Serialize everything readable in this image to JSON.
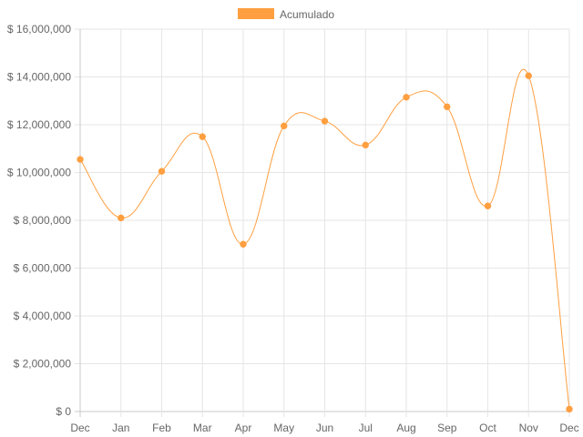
{
  "chart_data": {
    "type": "line",
    "title": "",
    "xlabel": "",
    "ylabel": "",
    "categories": [
      "Dec",
      "Jan",
      "Feb",
      "Mar",
      "Apr",
      "May",
      "Jun",
      "Jul",
      "Aug",
      "Sep",
      "Oct",
      "Nov",
      "Dec"
    ],
    "series": [
      {
        "name": "Acumulado",
        "color": "#ff9f40",
        "values": [
          10550000,
          8100000,
          10050000,
          11500000,
          7000000,
          11950000,
          12150000,
          11150000,
          13150000,
          12750000,
          8600000,
          14050000,
          100000
        ]
      }
    ],
    "ylim": [
      0,
      16000000
    ],
    "y_ticks": [
      0,
      2000000,
      4000000,
      6000000,
      8000000,
      10000000,
      12000000,
      14000000,
      16000000
    ],
    "y_tick_labels": [
      "$ 0",
      "$ 2,000,000",
      "$ 4,000,000",
      "$ 6,000,000",
      "$ 8,000,000",
      "$ 10,000,000",
      "$ 12,000,000",
      "$ 14,000,000",
      "$ 16,000,000"
    ],
    "grid": true,
    "legend_position": "top-center",
    "colors": {
      "grid": "#e6e6e6",
      "axis": "#c8c8c8",
      "text": "#666666"
    }
  }
}
